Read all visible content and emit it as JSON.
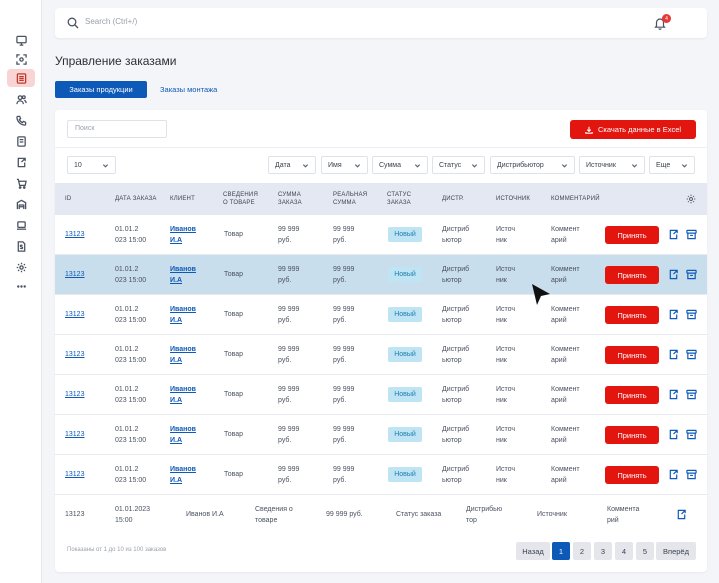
{
  "sidebar": {
    "items": [
      {
        "icon": "monitor-icon"
      },
      {
        "icon": "scan-icon"
      },
      {
        "icon": "orders-icon",
        "active": true
      },
      {
        "icon": "users-icon"
      },
      {
        "icon": "phone-icon"
      },
      {
        "icon": "document-icon"
      },
      {
        "icon": "export-icon"
      },
      {
        "icon": "cart-icon"
      },
      {
        "icon": "warehouse-icon"
      },
      {
        "icon": "laptop-icon"
      },
      {
        "icon": "dollar-file-icon"
      },
      {
        "icon": "gear-icon"
      },
      {
        "icon": "more-icon"
      }
    ]
  },
  "topbar": {
    "search_placeholder": "Search (Ctrl+/)",
    "notifications_count": "4"
  },
  "page_title": "Управление заказами",
  "tabs": [
    {
      "label": "Заказы продукции",
      "active": true
    },
    {
      "label": "Заказы монтажа",
      "active": false
    }
  ],
  "toolbar": {
    "search_placeholder": "Поиск",
    "export_label": "Скачать данные в Excel",
    "page_size": "10",
    "filters": [
      "Дата",
      "Имя",
      "Сумма",
      "Статус",
      "Дистрибьютор",
      "Источник",
      "Еще"
    ]
  },
  "table": {
    "headers": {
      "id": "ID",
      "date": "ДАТА ЗАКАЗА",
      "client": "КЛИЕНТ",
      "product": [
        "СВЕДЕНИЯ",
        "О ТОВАРЕ"
      ],
      "sum": [
        "СУММА",
        "ЗАКАЗА"
      ],
      "real_sum": [
        "РЕАЛЬНАЯ",
        "СУММА"
      ],
      "status": [
        "СТАТУС",
        "ЗАКАЗА"
      ],
      "distr": "ДИСТР.",
      "source": "ИСТОЧНИК",
      "comment": "КОММЕНТАРИЙ"
    },
    "rows": [
      {
        "id": "13123",
        "date": [
          "01.01.2",
          "023 15:00"
        ],
        "client": [
          "Иванов",
          "И.А"
        ],
        "product": "Товар",
        "sum": [
          "99 999",
          "руб."
        ],
        "real_sum": [
          "99 999",
          "руб."
        ],
        "status": "Новый",
        "distr": [
          "Дистриб",
          "ьютор"
        ],
        "source": [
          "Источ",
          "ник"
        ],
        "comment": [
          "Коммент",
          "арий"
        ],
        "action": "Принять"
      },
      {
        "id": "13123",
        "date": [
          "01.01.2",
          "023 15:00"
        ],
        "client": [
          "Иванов",
          "И.А"
        ],
        "product": "Товар",
        "sum": [
          "99 999",
          "руб."
        ],
        "real_sum": [
          "99 999",
          "руб."
        ],
        "status": "Новый",
        "distr": [
          "Дистриб",
          "ьютор"
        ],
        "source": [
          "Источ",
          "ник"
        ],
        "comment": [
          "Коммент",
          "арий"
        ],
        "action": "Принять"
      },
      {
        "id": "13123",
        "date": [
          "01.01.2",
          "023 15:00"
        ],
        "client": [
          "Иванов",
          "И.А"
        ],
        "product": "Товар",
        "sum": [
          "99 999",
          "руб."
        ],
        "real_sum": [
          "99 999",
          "руб."
        ],
        "status": "Новый",
        "distr": [
          "Дистриб",
          "ьютор"
        ],
        "source": [
          "Источ",
          "ник"
        ],
        "comment": [
          "Коммент",
          "арий"
        ],
        "action": "Принять"
      },
      {
        "id": "13123",
        "date": [
          "01.01.2",
          "023 15:00"
        ],
        "client": [
          "Иванов",
          "И.А"
        ],
        "product": "Товар",
        "sum": [
          "99 999",
          "руб."
        ],
        "real_sum": [
          "99 999",
          "руб."
        ],
        "status": "Новый",
        "distr": [
          "Дистриб",
          "ьютор"
        ],
        "source": [
          "Источ",
          "ник"
        ],
        "comment": [
          "Коммент",
          "арий"
        ],
        "action": "Принять"
      },
      {
        "id": "13123",
        "date": [
          "01.01.2",
          "023 15:00"
        ],
        "client": [
          "Иванов",
          "И.А"
        ],
        "product": "Товар",
        "sum": [
          "99 999",
          "руб."
        ],
        "real_sum": [
          "99 999",
          "руб."
        ],
        "status": "Новый",
        "distr": [
          "Дистриб",
          "ьютор"
        ],
        "source": [
          "Источ",
          "ник"
        ],
        "comment": [
          "Коммент",
          "арий"
        ],
        "action": "Принять"
      },
      {
        "id": "13123",
        "date": [
          "01.01.2",
          "023 15:00"
        ],
        "client": [
          "Иванов",
          "И.А"
        ],
        "product": "Товар",
        "sum": [
          "99 999",
          "руб."
        ],
        "real_sum": [
          "99 999",
          "руб."
        ],
        "status": "Новый",
        "distr": [
          "Дистриб",
          "ьютор"
        ],
        "source": [
          "Источ",
          "ник"
        ],
        "comment": [
          "Коммент",
          "арий"
        ],
        "action": "Принять"
      },
      {
        "id": "13123",
        "date": [
          "01.01.2",
          "023 15:00"
        ],
        "client": [
          "Иванов",
          "И.А"
        ],
        "product": "Товар",
        "sum": [
          "99 999",
          "руб."
        ],
        "real_sum": [
          "99 999",
          "руб."
        ],
        "status": "Новый",
        "distr": [
          "Дистриб",
          "ьютор"
        ],
        "source": [
          "Источ",
          "ник"
        ],
        "comment": [
          "Коммент",
          "арий"
        ],
        "action": "Принять"
      }
    ],
    "last_row": {
      "id": "13123",
      "date": [
        "01.01.2023",
        "15:00"
      ],
      "client": "Иванов И.А",
      "product": [
        "Сведения о",
        "товаре"
      ],
      "sum": "99 999 руб.",
      "status": "Статус заказа",
      "distr": [
        "Дистрибью",
        "тор"
      ],
      "source": "Источник",
      "comment": [
        "Коммента",
        "рий"
      ]
    }
  },
  "pagination": {
    "info": "Показаны от 1 до 10 из 100 заказов",
    "prev": "Назад",
    "pages": [
      "1",
      "2",
      "3",
      "4",
      "5"
    ],
    "current": "1",
    "next": "Вперёд"
  }
}
